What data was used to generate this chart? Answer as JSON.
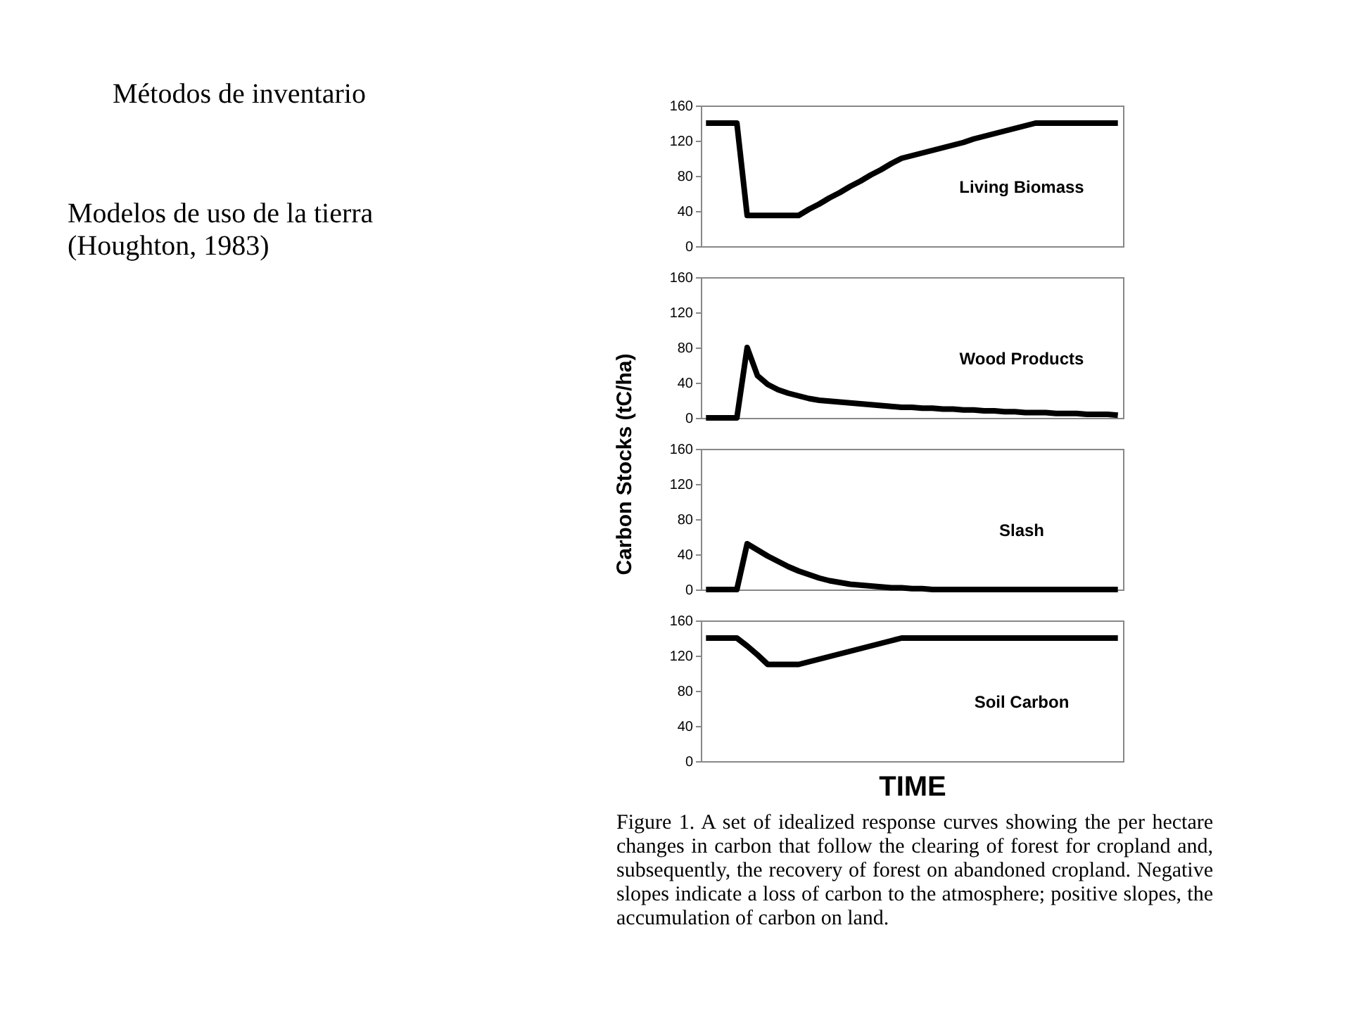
{
  "chart_data": [
    {
      "type": "line",
      "annotations": [
        "Métodos de inventario",
        "Modelos de uso de la tierra (Houghton, 1983)"
      ],
      "categories": [
        null,
        null,
        null,
        null,
        null,
        null,
        null,
        null,
        null,
        null,
        null,
        null,
        null,
        null,
        null,
        null,
        null,
        null,
        null,
        null,
        null,
        null,
        null,
        null,
        null,
        null,
        null,
        null,
        null,
        null,
        null,
        null,
        null,
        null,
        null,
        null,
        null,
        null,
        null,
        null,
        null
      ],
      "ylim": [
        0,
        160
      ],
      "yticks": [
        0,
        40,
        80,
        120,
        160
      ],
      "tick_labels": "y",
      "series": [
        {
          "name": "Living Biomass",
          "color": "#000000",
          "values": [
            140,
            140,
            140,
            140,
            35,
            35,
            35,
            35,
            35,
            35,
            42,
            48,
            55,
            61,
            68,
            74,
            81,
            87,
            94,
            100,
            103,
            106,
            109,
            112,
            115,
            118,
            122,
            125,
            128,
            131,
            134,
            137,
            140,
            140,
            140,
            140,
            140,
            140,
            140,
            140,
            140
          ]
        }
      ]
    },
    {
      "type": "line",
      "ylabel": "Carbon Stocks (tC/ha)",
      "categories": [
        null,
        null,
        null,
        null,
        null,
        null,
        null,
        null,
        null,
        null,
        null,
        null,
        null,
        null,
        null,
        null,
        null,
        null,
        null,
        null,
        null,
        null,
        null,
        null,
        null,
        null,
        null,
        null,
        null,
        null,
        null,
        null,
        null,
        null,
        null,
        null,
        null,
        null,
        null,
        null,
        null
      ],
      "ylim": [
        0,
        160
      ],
      "yticks": [
        0,
        40,
        80,
        120,
        160
      ],
      "tick_labels": "y",
      "series": [
        {
          "name": "Wood Products",
          "color": "#000000",
          "values": [
            0,
            0,
            0,
            0,
            80,
            48,
            38,
            32,
            28,
            25,
            22,
            20,
            19,
            18,
            17,
            16,
            15,
            14,
            13,
            12,
            12,
            11,
            11,
            10,
            10,
            9,
            9,
            8,
            8,
            7,
            7,
            6,
            6,
            6,
            5,
            5,
            5,
            4,
            4,
            4,
            3
          ]
        }
      ]
    },
    {
      "type": "line",
      "categories": [
        null,
        null,
        null,
        null,
        null,
        null,
        null,
        null,
        null,
        null,
        null,
        null,
        null,
        null,
        null,
        null,
        null,
        null,
        null,
        null,
        null,
        null,
        null,
        null,
        null,
        null,
        null,
        null,
        null,
        null,
        null,
        null,
        null,
        null,
        null,
        null,
        null,
        null,
        null,
        null,
        null
      ],
      "ylim": [
        0,
        160
      ],
      "yticks": [
        0,
        40,
        80,
        120,
        160
      ],
      "tick_labels": "y",
      "series": [
        {
          "name": "Slash",
          "color": "#000000",
          "values": [
            0,
            0,
            0,
            0,
            52,
            45,
            38,
            32,
            26,
            21,
            17,
            13,
            10,
            8,
            6,
            5,
            4,
            3,
            2,
            2,
            1,
            1,
            0,
            0,
            0,
            0,
            0,
            0,
            0,
            0,
            0,
            0,
            0,
            0,
            0,
            0,
            0,
            0,
            0,
            0,
            0
          ]
        }
      ]
    },
    {
      "type": "line",
      "xlabel": "TIME",
      "annotations": [
        "Figure 1. A set of idealized response curves showing the per hectare changes in carbon that follow the clearing of forest for cropland and, subsequently, the recovery of forest on abandoned cropland. Negative slopes indicate a loss of carbon to the atmosphere; positive slopes, the accumulation of carbon on land."
      ],
      "categories": [
        null,
        null,
        null,
        null,
        null,
        null,
        null,
        null,
        null,
        null,
        null,
        null,
        null,
        null,
        null,
        null,
        null,
        null,
        null,
        null,
        null,
        null,
        null,
        null,
        null,
        null,
        null,
        null,
        null,
        null,
        null,
        null,
        null,
        null,
        null,
        null,
        null,
        null,
        null,
        null,
        null
      ],
      "ylim": [
        0,
        160
      ],
      "yticks": [
        0,
        40,
        80,
        120,
        160
      ],
      "tick_labels": "y",
      "series": [
        {
          "name": "Soil Carbon",
          "color": "#000000",
          "values": [
            140,
            140,
            140,
            140,
            131,
            121,
            110,
            110,
            110,
            110,
            113,
            116,
            119,
            122,
            125,
            128,
            131,
            134,
            137,
            140,
            140,
            140,
            140,
            140,
            140,
            140,
            140,
            140,
            140,
            140,
            140,
            140,
            140,
            140,
            140,
            140,
            140,
            140,
            140,
            140,
            140
          ]
        }
      ]
    }
  ]
}
